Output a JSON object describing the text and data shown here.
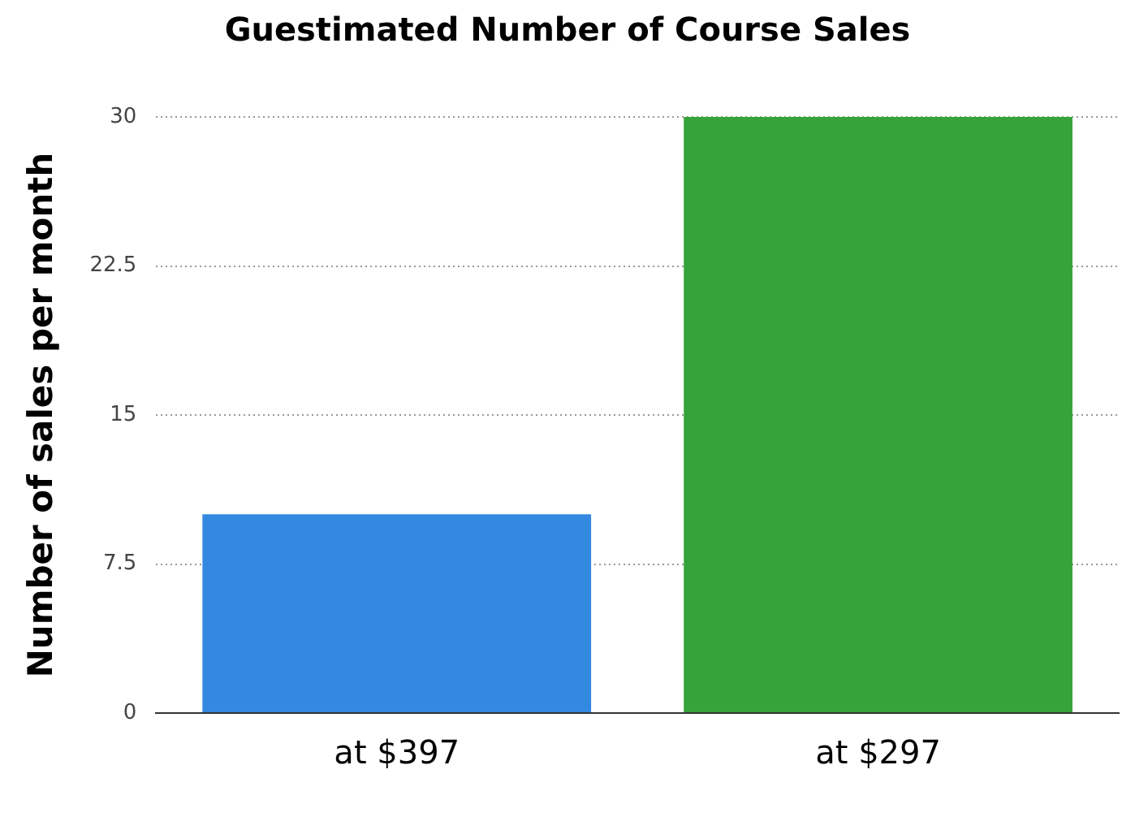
{
  "chart_data": {
    "type": "bar",
    "title": "Guestimated Number of Course Sales",
    "ylabel": "Number of sales per month",
    "categories": [
      "at $397",
      "at $297"
    ],
    "values": [
      10,
      30
    ],
    "colors": [
      "#3388e0",
      "#35a33a"
    ],
    "ylim": [
      0,
      30
    ],
    "yticks": [
      0,
      7.5,
      15,
      22.5,
      30
    ],
    "grid": "y"
  }
}
